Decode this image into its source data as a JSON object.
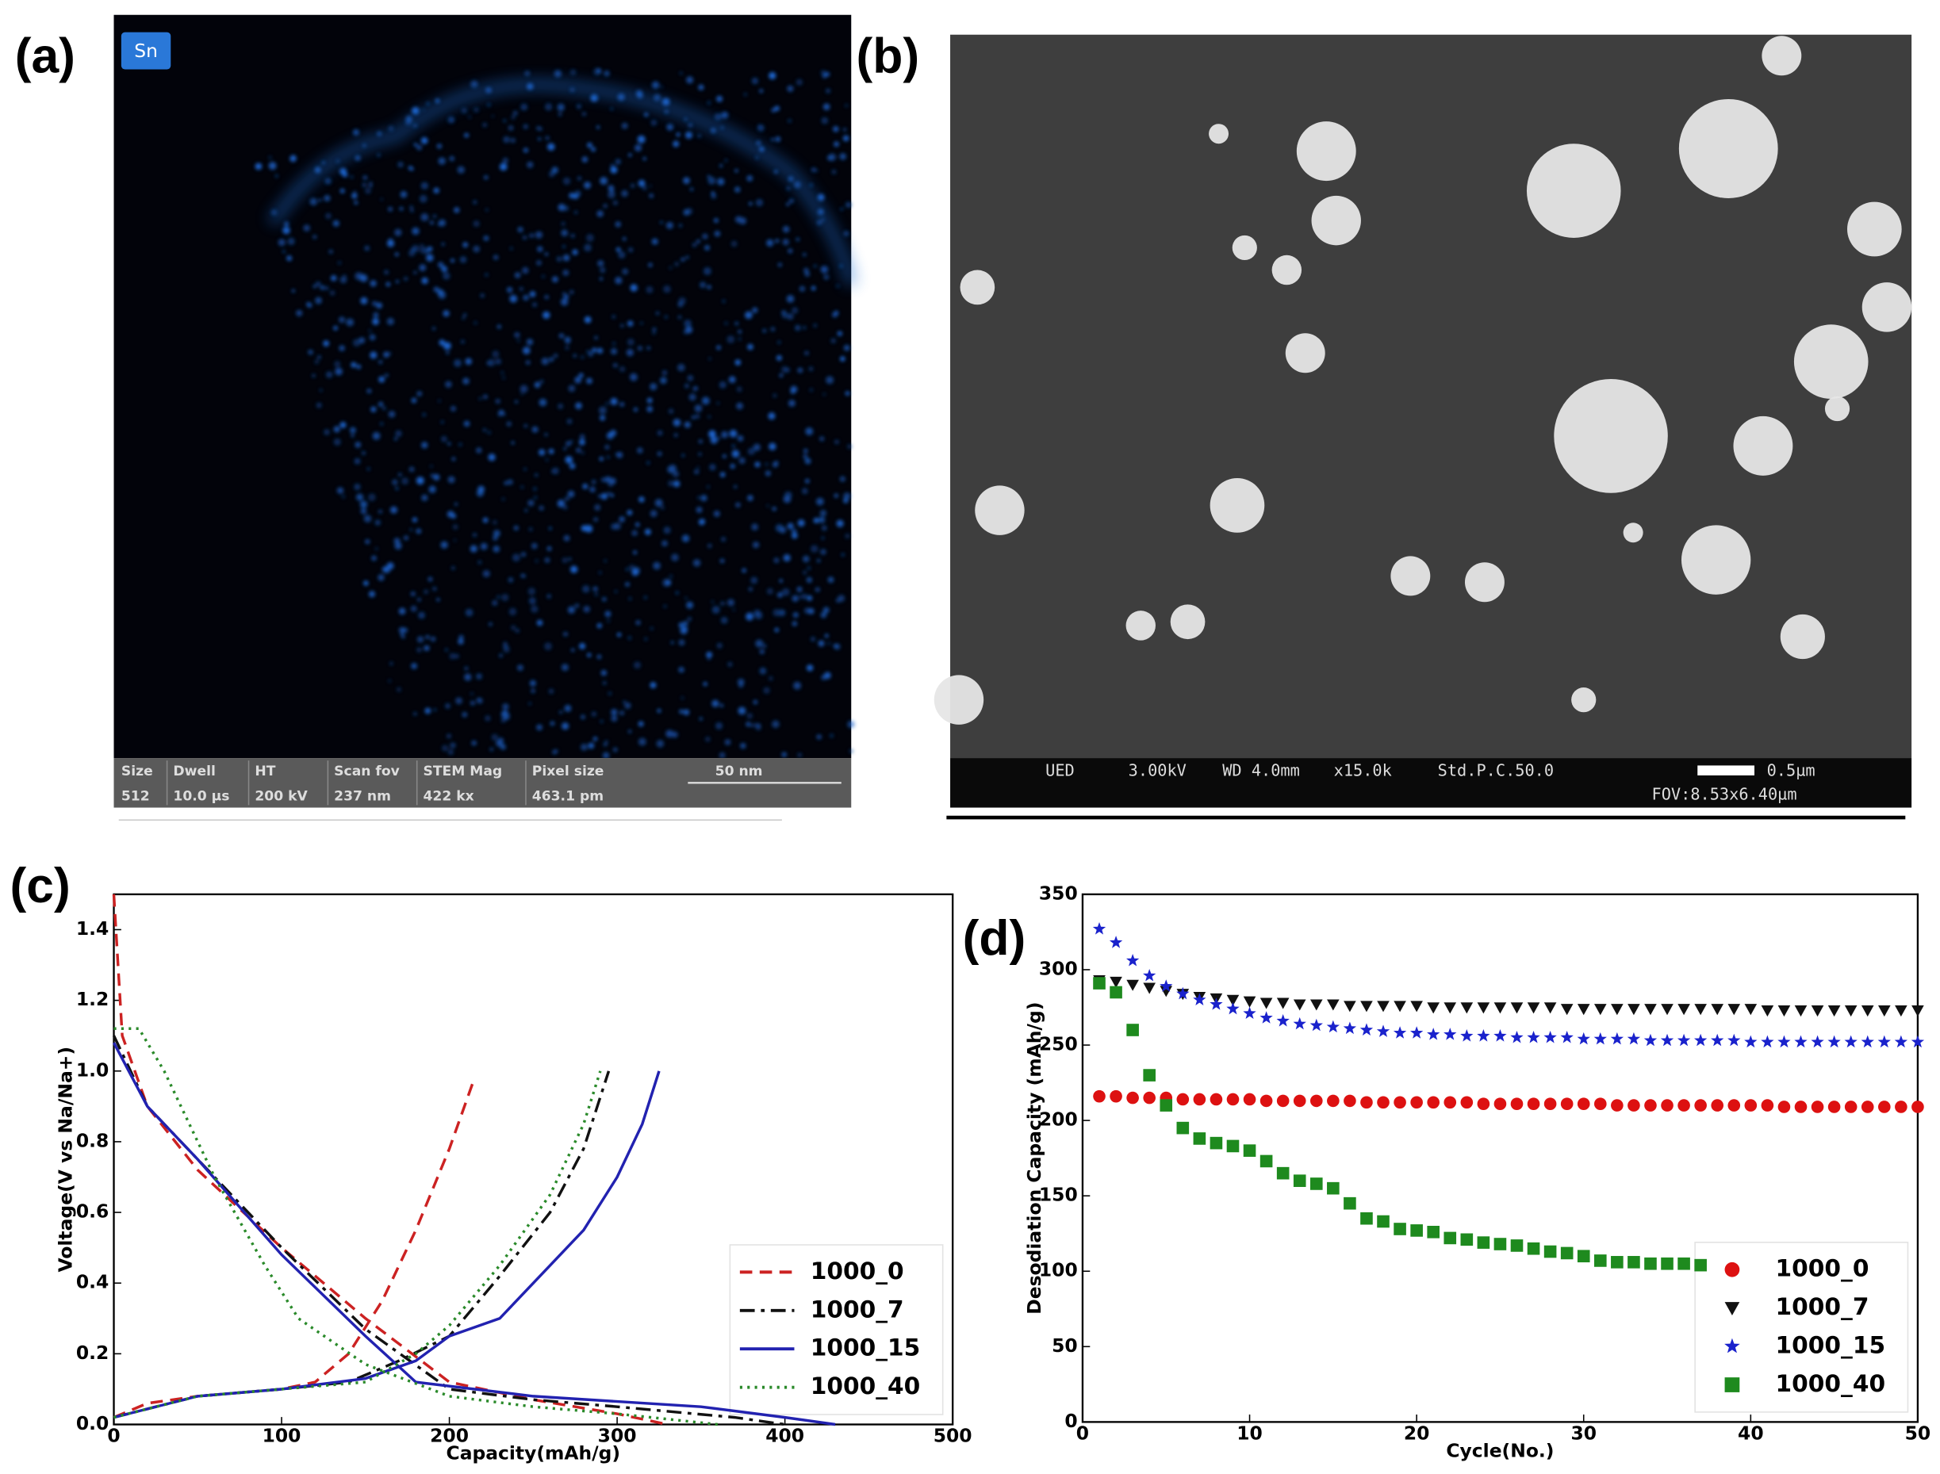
{
  "panels": {
    "a": {
      "label": "(a)",
      "element": "Sn",
      "info_headers": [
        "Size",
        "Dwell",
        "HT",
        "Scan fov",
        "STEM Mag",
        "Pixel size"
      ],
      "info_values": [
        "512",
        "10.0 µs",
        "200 kV",
        "237 nm",
        "422 kx",
        "463.1 pm"
      ],
      "scale_bar": "50 nm"
    },
    "b": {
      "label": "(b)",
      "info": [
        "UED",
        "3.00kV",
        "WD 4.0mm",
        "x15.0k",
        "Std.P.C.50.0"
      ],
      "scale_bar": "0.5µm",
      "fov": "FOV:8.53x6.40µm"
    }
  },
  "chart_data": [
    {
      "type": "line",
      "panel_label": "(c)",
      "x_label": "Capacity(mAh/g)",
      "y_label": "Voltage(V vs Na/Na+)",
      "xlim": [
        0,
        500
      ],
      "ylim": [
        0,
        1.5
      ],
      "xticks": [
        0,
        100,
        200,
        300,
        400,
        500
      ],
      "yticks": [
        {
          "value": 0,
          "label": "0.0"
        },
        0.2,
        0.4,
        0.6,
        0.8,
        {
          "value": 1,
          "label": "1.0"
        },
        1.2,
        1.4
      ],
      "legend": "lower right",
      "series": [
        {
          "name": "1000_0",
          "color": "#cc2222",
          "dash": "dashed",
          "x": [
            0,
            5,
            20,
            50,
            100,
            150,
            200,
            250,
            300,
            330,
            null,
            0,
            20,
            50,
            100,
            120,
            140,
            160,
            180,
            200,
            215
          ],
          "values": [
            1.5,
            1.1,
            0.9,
            0.72,
            0.5,
            0.3,
            0.12,
            0.07,
            0.03,
            0.0,
            null,
            0.02,
            0.06,
            0.08,
            0.1,
            0.12,
            0.2,
            0.35,
            0.55,
            0.78,
            0.98
          ]
        },
        {
          "name": "1000_7",
          "color": "#111111",
          "dash": "dashdot",
          "x": [
            0,
            20,
            50,
            100,
            150,
            200,
            250,
            300,
            370,
            400,
            null,
            0,
            50,
            100,
            140,
            170,
            200,
            230,
            260,
            280,
            295
          ],
          "values": [
            1.1,
            0.9,
            0.75,
            0.5,
            0.27,
            0.1,
            0.07,
            0.05,
            0.02,
            0.0,
            null,
            0.02,
            0.08,
            0.1,
            0.12,
            0.18,
            0.25,
            0.42,
            0.6,
            0.78,
            1.0
          ]
        },
        {
          "name": "1000_15",
          "color": "#2222b0",
          "dash": "solid",
          "x": [
            0,
            20,
            50,
            100,
            150,
            180,
            250,
            350,
            400,
            430,
            null,
            0,
            50,
            100,
            150,
            180,
            200,
            230,
            260,
            280,
            300,
            315,
            325
          ],
          "values": [
            1.08,
            0.9,
            0.75,
            0.48,
            0.25,
            0.12,
            0.08,
            0.05,
            0.02,
            0.0,
            null,
            0.02,
            0.08,
            0.1,
            0.13,
            0.18,
            0.25,
            0.3,
            0.45,
            0.55,
            0.7,
            0.85,
            1.0
          ]
        },
        {
          "name": "1000_40",
          "color": "#2a8a2a",
          "dash": "dotted",
          "x": [
            0,
            15,
            30,
            60,
            90,
            110,
            150,
            200,
            250,
            300,
            360,
            null,
            0,
            50,
            100,
            150,
            180,
            200,
            230,
            260,
            280,
            290
          ],
          "values": [
            1.12,
            1.12,
            1.0,
            0.7,
            0.45,
            0.3,
            0.17,
            0.08,
            0.05,
            0.03,
            0.0,
            null,
            0.02,
            0.08,
            0.1,
            0.12,
            0.2,
            0.28,
            0.45,
            0.65,
            0.85,
            1.0
          ]
        }
      ]
    },
    {
      "type": "scatter",
      "panel_label": "(d)",
      "x_label": "Cycle(No.)",
      "y_label": "Desodiation Capacity (mAh/g)",
      "xlim": [
        0,
        50
      ],
      "ylim": [
        0,
        350
      ],
      "xticks": [
        0,
        10,
        20,
        30,
        40,
        50
      ],
      "yticks": [
        0,
        50,
        100,
        150,
        200,
        250,
        300,
        350
      ],
      "legend": "lower right",
      "x": [
        1,
        2,
        3,
        4,
        5,
        6,
        7,
        8,
        9,
        10,
        11,
        12,
        13,
        14,
        15,
        16,
        17,
        18,
        19,
        20,
        21,
        22,
        23,
        24,
        25,
        26,
        27,
        28,
        29,
        30,
        31,
        32,
        33,
        34,
        35,
        36,
        37,
        38,
        39,
        40,
        41,
        42,
        43,
        44,
        45,
        46,
        47,
        48,
        49,
        50
      ],
      "series": [
        {
          "name": "1000_0",
          "color": "#dd1111",
          "marker": "circle",
          "values": [
            216,
            216,
            215,
            215,
            215,
            214,
            214,
            214,
            214,
            214,
            213,
            213,
            213,
            213,
            213,
            213,
            212,
            212,
            212,
            212,
            212,
            212,
            212,
            211,
            211,
            211,
            211,
            211,
            211,
            211,
            211,
            210,
            210,
            210,
            210,
            210,
            210,
            210,
            210,
            210,
            210,
            209,
            209,
            209,
            209,
            209,
            209,
            209,
            209,
            209
          ]
        },
        {
          "name": "1000_7",
          "color": "#111111",
          "marker": "triangle-down",
          "values": [
            293,
            292,
            290,
            288,
            286,
            284,
            282,
            281,
            280,
            279,
            278,
            278,
            277,
            277,
            277,
            276,
            276,
            276,
            276,
            276,
            275,
            275,
            275,
            275,
            275,
            275,
            275,
            275,
            274,
            274,
            274,
            274,
            274,
            274,
            274,
            274,
            274,
            274,
            274,
            274,
            273,
            273,
            273,
            273,
            273,
            273,
            273,
            273,
            273,
            273
          ]
        },
        {
          "name": "1000_15",
          "color": "#1a22cc",
          "marker": "star",
          "values": [
            327,
            318,
            306,
            296,
            289,
            284,
            280,
            277,
            274,
            271,
            268,
            266,
            264,
            263,
            262,
            261,
            260,
            259,
            258,
            258,
            257,
            257,
            256,
            256,
            256,
            255,
            255,
            255,
            255,
            254,
            254,
            254,
            254,
            253,
            253,
            253,
            253,
            253,
            253,
            252,
            252,
            252,
            252,
            252,
            252,
            252,
            252,
            252,
            252,
            252
          ]
        },
        {
          "name": "1000_40",
          "color": "#1e8a1e",
          "marker": "square",
          "values": [
            291,
            285,
            260,
            230,
            210,
            195,
            188,
            185,
            183,
            180,
            173,
            165,
            160,
            158,
            155,
            145,
            135,
            133,
            128,
            127,
            126,
            122,
            121,
            119,
            118,
            117,
            115,
            113,
            112,
            110,
            107,
            106,
            106,
            105,
            105,
            105,
            104,
            null,
            null,
            null,
            null,
            null,
            null,
            null,
            null,
            null,
            null,
            null,
            null,
            null
          ]
        }
      ]
    }
  ]
}
